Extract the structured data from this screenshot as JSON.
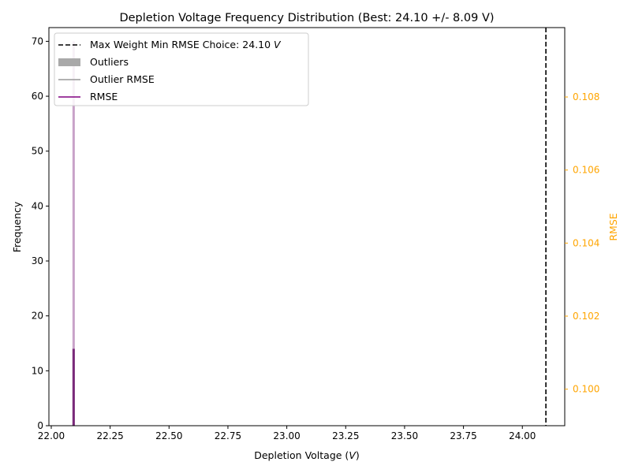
{
  "chart_data": {
    "type": "histogram",
    "title": "Depletion Voltage Frequency Distribution (Best: 24.10 +/- 8.09 V)",
    "xlabel": "Depletion Voltage (",
    "xlabel_unit": "V",
    "xlabel_close": ")",
    "ylabel": "Frequency",
    "y2label": "RMSE",
    "xlim": [
      21.99,
      24.18
    ],
    "ylim": [
      0,
      72.5
    ],
    "y2lim": [
      0.099,
      0.1099
    ],
    "xticks": [
      22.0,
      22.25,
      22.5,
      22.75,
      23.0,
      23.25,
      23.5,
      23.75,
      24.0
    ],
    "xtick_labels": [
      "22.00",
      "22.25",
      "22.50",
      "22.75",
      "23.00",
      "23.25",
      "23.50",
      "23.75",
      "24.00"
    ],
    "yticks": [
      0,
      10,
      20,
      30,
      40,
      50,
      60,
      70
    ],
    "ytick_labels": [
      "0",
      "10",
      "20",
      "30",
      "40",
      "50",
      "60",
      "70"
    ],
    "y2ticks": [
      0.1,
      0.102,
      0.104,
      0.106,
      0.108
    ],
    "y2tick_labels": [
      "0.100",
      "0.102",
      "0.104",
      "0.106",
      "0.108"
    ],
    "bars": [
      {
        "name": "Outliers",
        "x": 22.095,
        "value": 70,
        "color": "#c8a2c8"
      },
      {
        "name": "Outliers-dark",
        "x": 22.095,
        "value": 14,
        "color": "#7a2a7a"
      }
    ],
    "vline": {
      "x": 24.1,
      "label": "Max Weight Min RMSE Choice: 24.10 ",
      "label_unit": "V",
      "color": "#000000"
    },
    "legend": {
      "position": "top-left",
      "entries": [
        {
          "label": "Max Weight Min RMSE Choice: 24.10 ",
          "unit": "V",
          "style": "dashed",
          "color": "#000000"
        },
        {
          "label": "Outliers",
          "style": "patch",
          "color": "#a9a9a9"
        },
        {
          "label": "Outlier RMSE",
          "style": "line",
          "color": "#999999"
        },
        {
          "label": "RMSE",
          "style": "line",
          "color": "#800080"
        }
      ]
    },
    "colors": {
      "axis": "#000000",
      "secondary_axis": "#ffa500",
      "rmse": "#800080",
      "bar_light": "#c8a2c8"
    }
  }
}
